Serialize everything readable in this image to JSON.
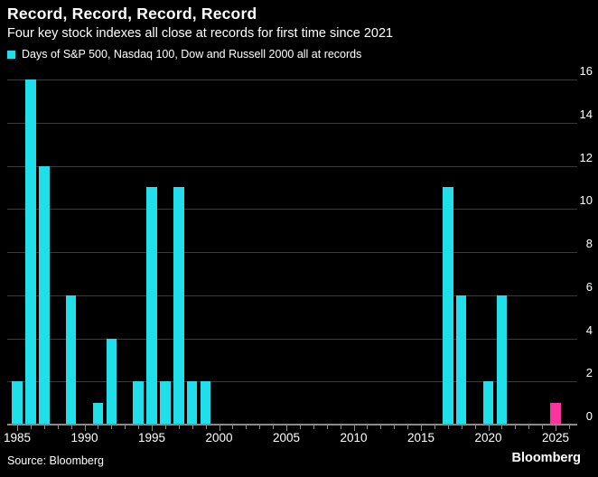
{
  "header": {
    "title": "Record, Record, Record, Record",
    "subtitle": "Four key stock indexes all close at records for first time since 2021"
  },
  "legend": {
    "label": "Days of S&P 500, Nasdaq 100, Dow and Russell 2000 all at records"
  },
  "footer": {
    "source": "Source: Bloomberg",
    "logo": "Bloomberg"
  },
  "chart_data": {
    "type": "bar",
    "title": "Record, Record, Record, Record",
    "subtitle": "Four key stock indexes all close at records for first time since 2021",
    "legend_label": "Days of S&P 500, Nasdaq 100, Dow and Russell 2000 all at records",
    "xlabel": "",
    "ylabel": "",
    "ylim": [
      0,
      16
    ],
    "y_ticks": [
      0,
      2,
      4,
      6,
      8,
      10,
      12,
      14,
      16
    ],
    "x_major_ticks": [
      1985,
      1990,
      1995,
      2000,
      2005,
      2010,
      2015,
      2020,
      2025
    ],
    "x_minor_tick_interval_years": 1,
    "x_range": [
      1985,
      2026
    ],
    "grid": "horizontal",
    "y_axis_side": "right",
    "legend_position": "top-left",
    "points": [
      {
        "year": 1985,
        "value": 2
      },
      {
        "year": 1986,
        "value": 16
      },
      {
        "year": 1987,
        "value": 12
      },
      {
        "year": 1989,
        "value": 6
      },
      {
        "year": 1991,
        "value": 1
      },
      {
        "year": 1992,
        "value": 4
      },
      {
        "year": 1994,
        "value": 2
      },
      {
        "year": 1995,
        "value": 11
      },
      {
        "year": 1996,
        "value": 2
      },
      {
        "year": 1997,
        "value": 11
      },
      {
        "year": 1998,
        "value": 2
      },
      {
        "year": 1999,
        "value": 2
      },
      {
        "year": 2017,
        "value": 11
      },
      {
        "year": 2018,
        "value": 6
      },
      {
        "year": 2020,
        "value": 2
      },
      {
        "year": 2021,
        "value": 6
      },
      {
        "year": 2025,
        "value": 1,
        "highlight": true
      }
    ],
    "colors": {
      "bar": "#1FE0EA",
      "highlight_bar": "#FA339E",
      "background": "#000000",
      "text": "#FFFFFF",
      "gridline": "#3A3A3A",
      "axis": "#8A8A8A"
    }
  }
}
